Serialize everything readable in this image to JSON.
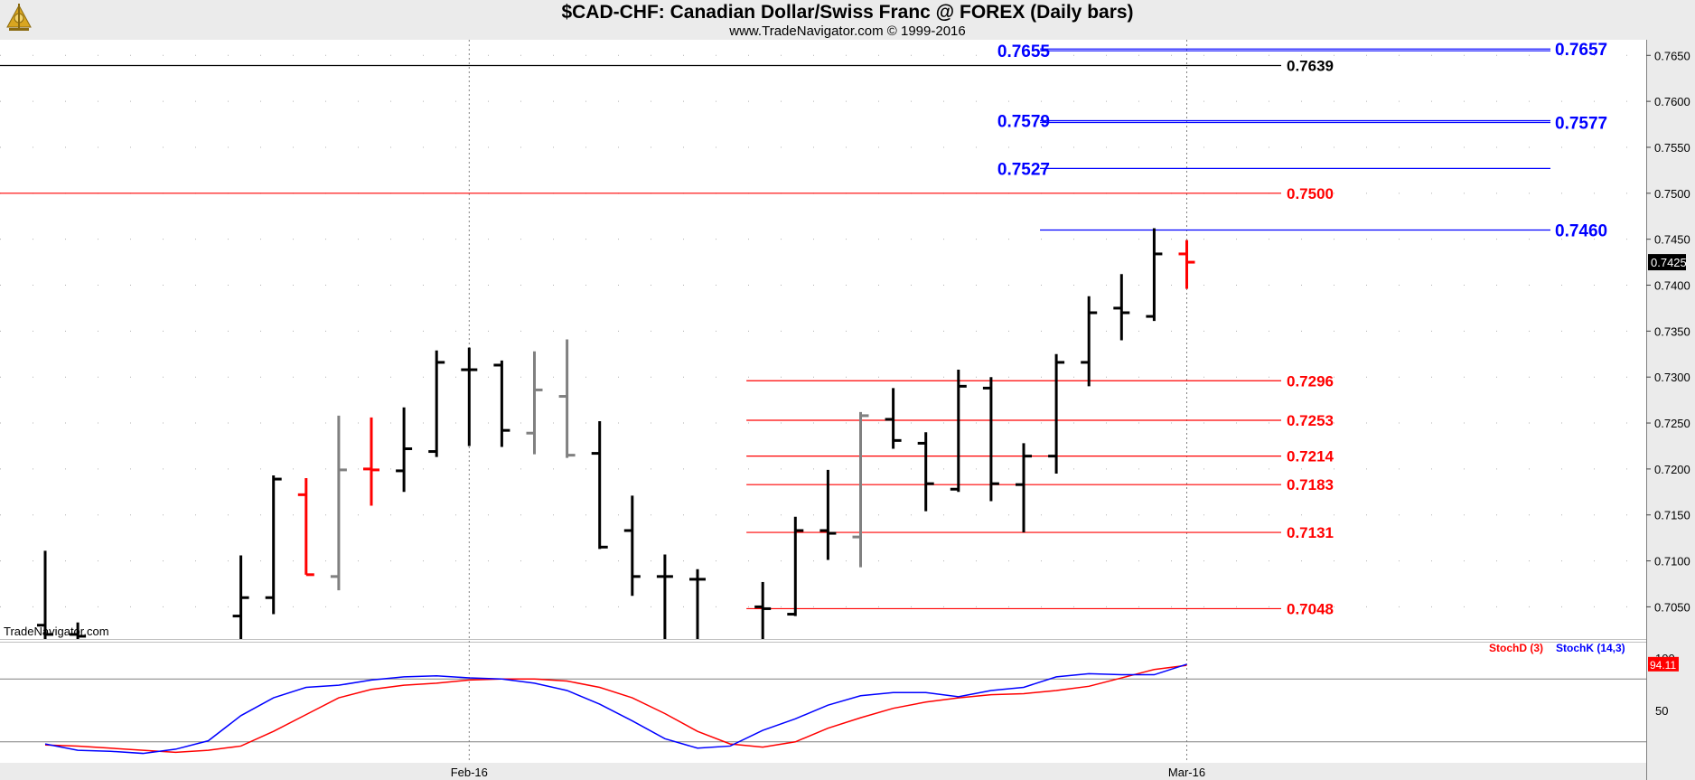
{
  "header": {
    "title": "$CAD-CHF:  Canadian Dollar/Swiss Franc @ FOREX  (Daily bars)",
    "subtitle": "www.TradeNavigator.com © 1999-2016"
  },
  "logo_icon": "trade-navigator-sextant-icon",
  "watermark": "TradeNavigator.com",
  "colors": {
    "up_bar": "#000000",
    "down_bar": "#ff0000",
    "neutral_bar": "#808080",
    "resistance": "#ff0000",
    "projection": "#0000ff",
    "stoch_d": "#ff0000",
    "stoch_k": "#0000ff",
    "axis_bg": "#ebebeb"
  },
  "chart_data": [
    {
      "type": "ohlc",
      "title": "$CAD-CHF:  Canadian Dollar/Swiss Franc @ FOREX  (Daily bars)",
      "ylim": [
        0.7015,
        0.7667
      ],
      "y_ticks": [
        "0.7050",
        "0.7100",
        "0.7150",
        "0.7200",
        "0.7250",
        "0.7300",
        "0.7350",
        "0.7400",
        "0.7450",
        "0.7500",
        "0.7550",
        "0.7600",
        "0.7650"
      ],
      "x_ticks": [
        {
          "label": "Feb-16",
          "bar": 13
        },
        {
          "label": "Mar-16",
          "bar": 35
        }
      ],
      "last_price": "0.7425",
      "bars": [
        {
          "o": 0.703,
          "h": 0.7111,
          "l": 0.7015,
          "c": 0.702,
          "color": "black"
        },
        {
          "o": 0.702,
          "h": 0.7033,
          "l": 0.7015,
          "c": 0.7018,
          "color": "black"
        },
        {
          "o": null,
          "h": null,
          "l": null,
          "c": null,
          "color": "none"
        },
        {
          "o": null,
          "h": null,
          "l": null,
          "c": null,
          "color": "none"
        },
        {
          "o": null,
          "h": null,
          "l": null,
          "c": null,
          "color": "none"
        },
        {
          "o": null,
          "h": null,
          "l": null,
          "c": null,
          "color": "none"
        },
        {
          "o": 0.704,
          "h": 0.7106,
          "l": 0.7015,
          "c": 0.706,
          "color": "black"
        },
        {
          "o": 0.706,
          "h": 0.7193,
          "l": 0.7042,
          "c": 0.7189,
          "color": "black"
        },
        {
          "o": 0.7172,
          "h": 0.719,
          "l": 0.7085,
          "c": 0.7085,
          "color": "red"
        },
        {
          "o": 0.7083,
          "h": 0.7258,
          "l": 0.7068,
          "c": 0.7199,
          "color": "gray"
        },
        {
          "o": 0.72,
          "h": 0.7256,
          "l": 0.716,
          "c": 0.7199,
          "color": "red"
        },
        {
          "o": 0.7198,
          "h": 0.7267,
          "l": 0.7175,
          "c": 0.7222,
          "color": "black"
        },
        {
          "o": 0.7219,
          "h": 0.7329,
          "l": 0.7213,
          "c": 0.7316,
          "color": "black"
        },
        {
          "o": 0.7308,
          "h": 0.7332,
          "l": 0.7225,
          "c": 0.7308,
          "color": "black"
        },
        {
          "o": 0.7313,
          "h": 0.7318,
          "l": 0.7224,
          "c": 0.7242,
          "color": "black"
        },
        {
          "o": 0.7239,
          "h": 0.7328,
          "l": 0.7216,
          "c": 0.7286,
          "color": "gray"
        },
        {
          "o": 0.7279,
          "h": 0.7341,
          "l": 0.7212,
          "c": 0.7215,
          "color": "gray"
        },
        {
          "o": 0.7217,
          "h": 0.7252,
          "l": 0.7113,
          "c": 0.7115,
          "color": "black"
        },
        {
          "o": 0.7133,
          "h": 0.7171,
          "l": 0.7062,
          "c": 0.7083,
          "color": "black"
        },
        {
          "o": 0.7083,
          "h": 0.7107,
          "l": 0.7015,
          "c": 0.7083,
          "color": "black"
        },
        {
          "o": 0.708,
          "h": 0.7091,
          "l": 0.7015,
          "c": 0.708,
          "color": "black"
        },
        {
          "o": null,
          "h": null,
          "l": null,
          "c": null,
          "color": "none"
        },
        {
          "o": 0.705,
          "h": 0.7077,
          "l": 0.7015,
          "c": 0.7048,
          "color": "black"
        },
        {
          "o": 0.7042,
          "h": 0.7148,
          "l": 0.704,
          "c": 0.7133,
          "color": "black"
        },
        {
          "o": 0.7133,
          "h": 0.7199,
          "l": 0.7101,
          "c": 0.713,
          "color": "black"
        },
        {
          "o": 0.7126,
          "h": 0.7262,
          "l": 0.7093,
          "c": 0.7258,
          "color": "gray"
        },
        {
          "o": 0.7254,
          "h": 0.7288,
          "l": 0.7222,
          "c": 0.7231,
          "color": "black"
        },
        {
          "o": 0.7228,
          "h": 0.724,
          "l": 0.7154,
          "c": 0.7184,
          "color": "black"
        },
        {
          "o": 0.7178,
          "h": 0.7308,
          "l": 0.7175,
          "c": 0.729,
          "color": "black"
        },
        {
          "o": 0.7288,
          "h": 0.73,
          "l": 0.7165,
          "c": 0.7184,
          "color": "black"
        },
        {
          "o": 0.7183,
          "h": 0.7228,
          "l": 0.7131,
          "c": 0.7214,
          "color": "black"
        },
        {
          "o": 0.7214,
          "h": 0.7325,
          "l": 0.7195,
          "c": 0.7316,
          "color": "black"
        },
        {
          "o": 0.7316,
          "h": 0.7388,
          "l": 0.729,
          "c": 0.737,
          "color": "black"
        },
        {
          "o": 0.7375,
          "h": 0.7412,
          "l": 0.734,
          "c": 0.737,
          "color": "black"
        },
        {
          "o": 0.7366,
          "h": 0.7462,
          "l": 0.7361,
          "c": 0.7434,
          "color": "black"
        },
        {
          "o": 0.7434,
          "h": 0.7449,
          "l": 0.7396,
          "c": 0.7425,
          "color": "red"
        }
      ],
      "levels": [
        {
          "value": 0.7639,
          "label": "0.7639",
          "color": "black",
          "start_bar": -1,
          "end_bar": null,
          "label_side": "right"
        },
        {
          "value": 0.75,
          "label": "0.7500",
          "color": "red",
          "start_bar": -1,
          "end_bar": null,
          "label_side": "right"
        },
        {
          "value": 0.7296,
          "label": "0.7296",
          "color": "red",
          "start_bar": 21.5,
          "end_bar": null,
          "label_side": "right"
        },
        {
          "value": 0.7253,
          "label": "0.7253",
          "color": "red",
          "start_bar": 21.5,
          "end_bar": null,
          "label_side": "right"
        },
        {
          "value": 0.7214,
          "label": "0.7214",
          "color": "red",
          "start_bar": 21.5,
          "end_bar": null,
          "label_side": "right"
        },
        {
          "value": 0.7183,
          "label": "0.7183",
          "color": "red",
          "start_bar": 21.5,
          "end_bar": null,
          "label_side": "right"
        },
        {
          "value": 0.7131,
          "label": "0.7131",
          "color": "red",
          "start_bar": 21.5,
          "end_bar": null,
          "label_side": "right"
        },
        {
          "value": 0.7048,
          "label": "0.7048",
          "color": "red",
          "start_bar": 21.5,
          "end_bar": null,
          "label_side": "right"
        },
        {
          "value": 0.746,
          "label": "0.7460",
          "color": "blue",
          "start_bar": 30.5,
          "end_bar": null,
          "label_side": "far-right"
        },
        {
          "value": 0.7527,
          "label": "0.7527",
          "color": "blue",
          "start_bar": 30.5,
          "end_bar": null,
          "label_side": "left"
        },
        {
          "value": 0.7579,
          "label": "0.7579",
          "color": "blue",
          "start_bar": 30.5,
          "end_bar": null,
          "label_side": "left"
        },
        {
          "value": 0.7577,
          "label": "0.7577",
          "color": "blue",
          "start_bar": 30.5,
          "end_bar": null,
          "label_side": "far-right"
        },
        {
          "value": 0.7655,
          "label": "0.7655",
          "color": "blue",
          "start_bar": 30.5,
          "end_bar": null,
          "label_side": "left"
        },
        {
          "value": 0.7657,
          "label": "0.7657",
          "color": "blue",
          "start_bar": 30.5,
          "end_bar": null,
          "label_side": "far-right"
        }
      ]
    },
    {
      "type": "line",
      "title": "",
      "legend": [
        "StochD (3)",
        "StochK (14,3)"
      ],
      "ylim": [
        0,
        100
      ],
      "y_ticks": [
        "50",
        "100"
      ],
      "reference_lines": [
        80,
        20
      ],
      "last_value": "94.11",
      "series": [
        {
          "name": "StochD (3)",
          "color": "red",
          "values": [
            17,
            16,
            14,
            12,
            10,
            12,
            16,
            30,
            46,
            62,
            70,
            74,
            76,
            79,
            80,
            80,
            78,
            72,
            62,
            47,
            30,
            18,
            15,
            20,
            33,
            43,
            52,
            58,
            62,
            65,
            66,
            69,
            73,
            81,
            89,
            93
          ]
        },
        {
          "name": "StochK (14,3)",
          "color": "blue",
          "values": [
            18,
            12,
            11,
            9,
            13,
            21,
            45,
            62,
            72,
            74,
            79,
            82,
            83,
            81,
            80,
            76,
            69,
            56,
            40,
            23,
            14,
            16,
            31,
            42,
            55,
            64,
            67,
            67,
            63,
            69,
            72,
            82,
            85,
            84,
            84,
            94
          ]
        }
      ]
    }
  ]
}
